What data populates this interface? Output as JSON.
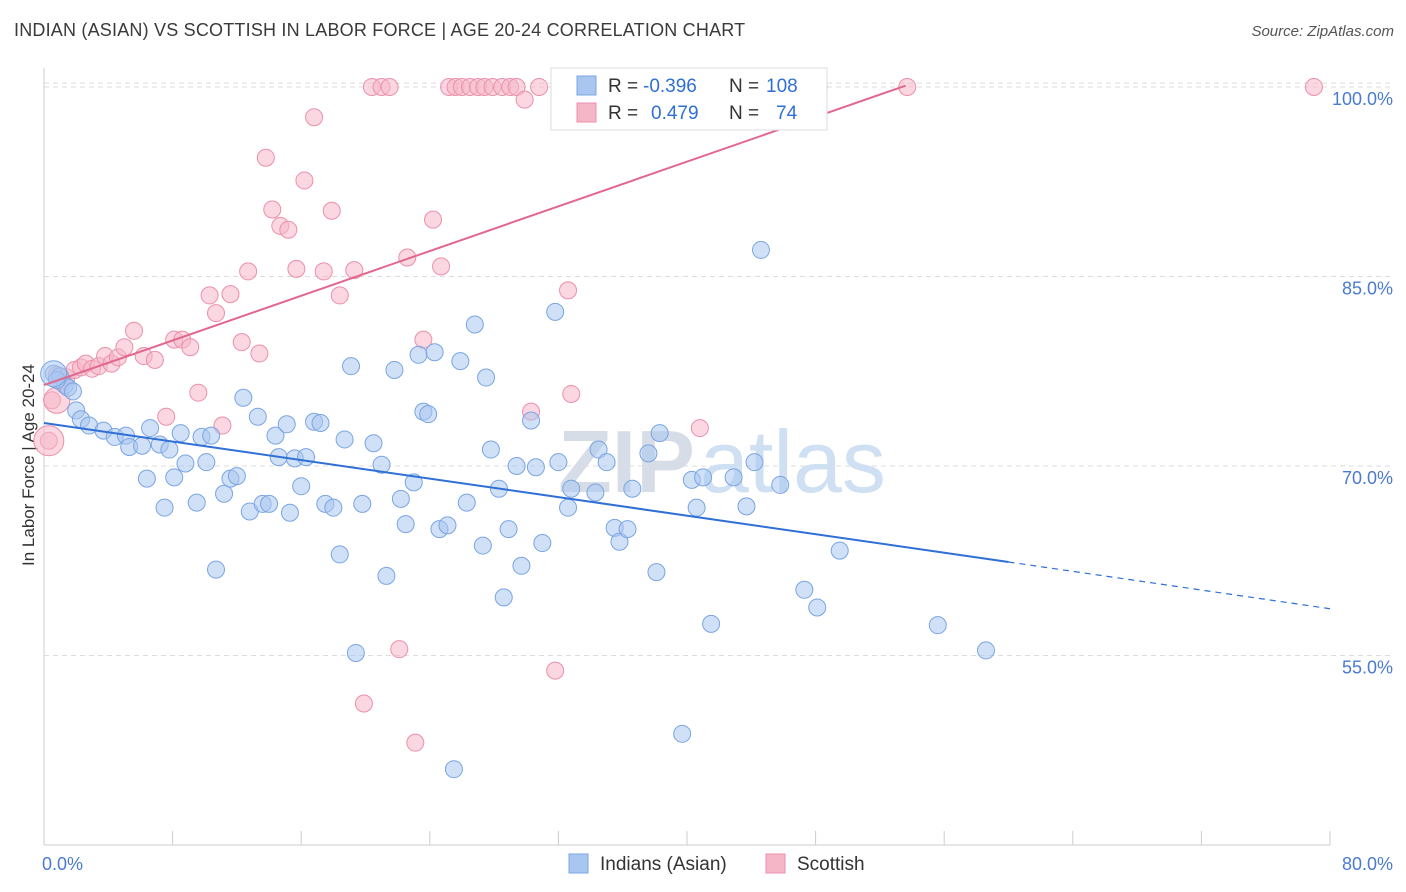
{
  "title": "INDIAN (ASIAN) VS SCOTTISH IN LABOR FORCE | AGE 20-24 CORRELATION CHART",
  "source": "Source: ZipAtlas.com",
  "watermark": {
    "zip": "ZIP",
    "atlas": "atlas"
  },
  "legend_top": {
    "rows": [
      {
        "r_label": "R =",
        "r_value": "-0.396",
        "n_label": "N =",
        "n_value": "108"
      },
      {
        "r_label": "R =",
        "r_value": "0.479",
        "n_label": "N =",
        "n_value": "74"
      }
    ]
  },
  "legend_bottom": {
    "items": [
      "Indians (Asian)",
      "Scottish"
    ]
  },
  "colors": {
    "blue_fill": "#a9c6f0",
    "blue_stroke": "#7aa5e2",
    "blue_line": "#2f6fd6",
    "pink_fill": "#f5b6c8",
    "pink_stroke": "#ec8fab",
    "pink_line": "#e2678f",
    "grid": "#dcdcdc",
    "tick_label": "#4a7bd0"
  },
  "chart_data": {
    "type": "scatter",
    "title": "INDIAN (ASIAN) VS SCOTTISH IN LABOR FORCE | AGE 20-24 CORRELATION CHART",
    "xlabel": "",
    "ylabel": "In Labor Force | Age 20-24",
    "xlim": [
      0,
      80
    ],
    "ylim": [
      40,
      101.5
    ],
    "x_tick_labels": [
      "0.0%",
      "80.0%"
    ],
    "y_ticks": [
      55,
      70,
      85,
      100
    ],
    "y_tick_labels": [
      "55.0%",
      "70.0%",
      "85.0%",
      "100.0%"
    ],
    "grid": true,
    "legend_position": "top-center",
    "series": [
      {
        "name": "Indians (Asian)",
        "color": "#a9c6f0",
        "R": -0.396,
        "N": 108,
        "trend": {
          "x0": 0,
          "y0": 73.4,
          "x1": 60,
          "y1": 62.4,
          "dashed_to_x": 80,
          "dashed_to_y": 58.7
        },
        "points": [
          [
            0.6,
            77.3
          ],
          [
            1.0,
            77.1
          ],
          [
            1.3,
            76.4
          ],
          [
            1.5,
            76.2
          ],
          [
            2.0,
            74.4
          ],
          [
            2.3,
            73.7
          ],
          [
            2.8,
            73.2
          ],
          [
            3.7,
            72.8
          ],
          [
            4.4,
            72.3
          ],
          [
            5.1,
            72.4
          ],
          [
            5.3,
            71.5
          ],
          [
            6.1,
            71.6
          ],
          [
            6.4,
            69.0
          ],
          [
            6.6,
            73.0
          ],
          [
            7.2,
            71.7
          ],
          [
            7.5,
            66.7
          ],
          [
            7.8,
            71.3
          ],
          [
            8.1,
            69.1
          ],
          [
            8.5,
            72.6
          ],
          [
            8.8,
            70.2
          ],
          [
            9.5,
            67.1
          ],
          [
            9.8,
            72.3
          ],
          [
            10.1,
            70.3
          ],
          [
            10.4,
            72.4
          ],
          [
            10.7,
            61.8
          ],
          [
            11.2,
            67.8
          ],
          [
            11.6,
            69.0
          ],
          [
            12.0,
            69.2
          ],
          [
            12.4,
            75.4
          ],
          [
            12.8,
            66.4
          ],
          [
            13.3,
            73.9
          ],
          [
            13.6,
            67.0
          ],
          [
            14.0,
            67.0
          ],
          [
            14.4,
            72.4
          ],
          [
            14.6,
            70.7
          ],
          [
            15.1,
            73.3
          ],
          [
            15.3,
            66.3
          ],
          [
            15.6,
            70.6
          ],
          [
            16.0,
            68.4
          ],
          [
            16.3,
            70.7
          ],
          [
            16.8,
            73.5
          ],
          [
            17.2,
            73.4
          ],
          [
            17.5,
            67.0
          ],
          [
            18.0,
            66.7
          ],
          [
            18.4,
            63.0
          ],
          [
            18.7,
            72.1
          ],
          [
            19.1,
            77.9
          ],
          [
            19.4,
            55.2
          ],
          [
            19.8,
            67.0
          ],
          [
            20.5,
            71.8
          ],
          [
            21.0,
            70.1
          ],
          [
            21.3,
            61.3
          ],
          [
            21.8,
            77.6
          ],
          [
            22.2,
            67.4
          ],
          [
            22.5,
            65.4
          ],
          [
            23.0,
            68.7
          ],
          [
            23.3,
            78.8
          ],
          [
            23.6,
            74.3
          ],
          [
            23.9,
            74.1
          ],
          [
            24.3,
            79.0
          ],
          [
            24.6,
            65.0
          ],
          [
            25.1,
            65.3
          ],
          [
            25.5,
            46.0
          ],
          [
            25.9,
            78.3
          ],
          [
            26.3,
            67.1
          ],
          [
            26.8,
            81.2
          ],
          [
            27.3,
            63.7
          ],
          [
            27.5,
            77.0
          ],
          [
            27.8,
            71.3
          ],
          [
            28.3,
            68.2
          ],
          [
            28.6,
            59.6
          ],
          [
            28.9,
            65.0
          ],
          [
            29.4,
            70.0
          ],
          [
            29.7,
            62.1
          ],
          [
            30.3,
            73.6
          ],
          [
            30.6,
            69.9
          ],
          [
            31.0,
            63.9
          ],
          [
            31.8,
            82.2
          ],
          [
            32.0,
            70.3
          ],
          [
            32.6,
            66.7
          ],
          [
            32.8,
            68.2
          ],
          [
            34.3,
            67.9
          ],
          [
            34.5,
            71.3
          ],
          [
            35.0,
            70.3
          ],
          [
            35.5,
            65.1
          ],
          [
            35.8,
            64.0
          ],
          [
            36.3,
            65.0
          ],
          [
            36.6,
            68.2
          ],
          [
            37.6,
            71.0
          ],
          [
            38.1,
            61.6
          ],
          [
            38.3,
            72.6
          ],
          [
            39.7,
            48.8
          ],
          [
            40.3,
            68.9
          ],
          [
            40.6,
            66.7
          ],
          [
            41.0,
            69.1
          ],
          [
            41.5,
            57.5
          ],
          [
            42.9,
            69.1
          ],
          [
            43.7,
            66.8
          ],
          [
            44.2,
            70.3
          ],
          [
            44.6,
            87.1
          ],
          [
            45.8,
            68.5
          ],
          [
            47.3,
            60.2
          ],
          [
            48.1,
            58.8
          ],
          [
            49.5,
            63.3
          ],
          [
            55.6,
            57.4
          ],
          [
            58.6,
            55.4
          ],
          [
            0.8,
            76.8
          ],
          [
            1.8,
            75.9
          ]
        ]
      },
      {
        "name": "Scottish",
        "color": "#f5b6c8",
        "R": 0.479,
        "N": 74,
        "trend": {
          "x0": 0,
          "y0": 76.4,
          "x1": 53.6,
          "y1": 100.1
        },
        "points": [
          [
            0.3,
            72.0
          ],
          [
            0.5,
            75.2
          ],
          [
            0.8,
            77.2
          ],
          [
            1.1,
            76.6
          ],
          [
            1.4,
            77.0
          ],
          [
            1.9,
            77.6
          ],
          [
            2.3,
            77.8
          ],
          [
            2.6,
            78.1
          ],
          [
            3.0,
            77.7
          ],
          [
            3.4,
            77.9
          ],
          [
            3.8,
            78.7
          ],
          [
            4.2,
            78.1
          ],
          [
            4.6,
            78.6
          ],
          [
            5.0,
            79.4
          ],
          [
            5.6,
            80.7
          ],
          [
            6.2,
            78.7
          ],
          [
            6.9,
            78.4
          ],
          [
            7.6,
            73.9
          ],
          [
            8.1,
            80.0
          ],
          [
            8.6,
            80.0
          ],
          [
            9.1,
            79.4
          ],
          [
            9.6,
            75.8
          ],
          [
            10.3,
            83.5
          ],
          [
            10.7,
            82.1
          ],
          [
            11.1,
            73.2
          ],
          [
            11.6,
            83.6
          ],
          [
            12.3,
            79.8
          ],
          [
            12.7,
            85.4
          ],
          [
            13.4,
            78.9
          ],
          [
            13.8,
            94.4
          ],
          [
            14.2,
            90.3
          ],
          [
            14.7,
            89.0
          ],
          [
            15.2,
            88.7
          ],
          [
            15.7,
            85.6
          ],
          [
            16.2,
            92.6
          ],
          [
            16.8,
            97.6
          ],
          [
            17.4,
            85.4
          ],
          [
            17.9,
            90.2
          ],
          [
            18.4,
            83.5
          ],
          [
            19.3,
            85.5
          ],
          [
            19.9,
            51.2
          ],
          [
            20.4,
            100.0
          ],
          [
            21.0,
            100.0
          ],
          [
            21.5,
            100.0
          ],
          [
            22.1,
            55.5
          ],
          [
            22.6,
            86.5
          ],
          [
            23.1,
            48.1
          ],
          [
            23.6,
            80.0
          ],
          [
            24.2,
            89.5
          ],
          [
            24.7,
            85.8
          ],
          [
            25.2,
            100.0
          ],
          [
            25.6,
            100.0
          ],
          [
            26.0,
            100.0
          ],
          [
            26.5,
            100.0
          ],
          [
            27.0,
            100.0
          ],
          [
            27.4,
            100.0
          ],
          [
            27.9,
            100.0
          ],
          [
            28.5,
            100.0
          ],
          [
            29.0,
            100.0
          ],
          [
            29.4,
            100.0
          ],
          [
            29.9,
            99.0
          ],
          [
            30.3,
            74.3
          ],
          [
            30.8,
            100.0
          ],
          [
            31.8,
            53.8
          ],
          [
            32.6,
            83.9
          ],
          [
            32.8,
            75.7
          ],
          [
            34.0,
            100.0
          ],
          [
            35.0,
            100.0
          ],
          [
            37.7,
            100.0
          ],
          [
            40.0,
            100.0
          ],
          [
            40.8,
            73.0
          ],
          [
            48.2,
            100.0
          ],
          [
            53.7,
            100.0
          ],
          [
            79.0,
            100.0
          ]
        ]
      }
    ]
  }
}
